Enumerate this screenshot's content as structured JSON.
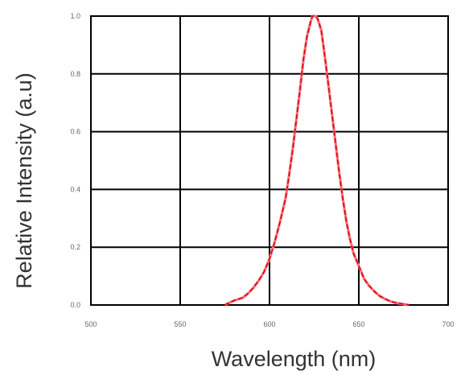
{
  "chart_data": {
    "type": "line",
    "title": "",
    "xlabel": "Wavelength (nm)",
    "ylabel": "Relative Intensity (a.u)",
    "xlim": [
      500,
      700
    ],
    "ylim": [
      0.0,
      1.0
    ],
    "xticks": [
      500,
      550,
      600,
      650,
      700
    ],
    "yticks": [
      0.0,
      0.2,
      0.4,
      0.6,
      0.8,
      1.0
    ],
    "xtick_labels": [
      "500",
      "550",
      "600",
      "650",
      "700"
    ],
    "ytick_labels": [
      "0.0",
      "0.2",
      "0.4",
      "0.6",
      "0.8",
      "1.0"
    ],
    "grid": true,
    "colors": {
      "line": "#e3000f",
      "line_light": "#f07a80",
      "grid": "#000000",
      "frame": "#000000"
    },
    "series": [
      {
        "x": [
          575,
          580,
          585,
          588,
          591,
          594,
          597,
          600,
          603,
          606,
          609,
          611,
          613,
          615,
          617,
          619,
          621,
          623,
          624,
          625,
          626,
          627,
          628,
          629,
          631,
          633,
          635,
          637,
          639,
          641,
          643,
          645,
          647,
          649,
          651,
          653,
          656,
          659,
          662,
          665,
          668,
          671,
          675,
          678
        ],
        "y": [
          0.0,
          0.015,
          0.025,
          0.04,
          0.06,
          0.085,
          0.115,
          0.16,
          0.22,
          0.29,
          0.37,
          0.45,
          0.54,
          0.64,
          0.74,
          0.85,
          0.93,
          0.98,
          1.0,
          1.0,
          1.0,
          0.99,
          0.97,
          0.95,
          0.86,
          0.76,
          0.66,
          0.56,
          0.46,
          0.37,
          0.29,
          0.23,
          0.18,
          0.15,
          0.12,
          0.09,
          0.065,
          0.045,
          0.03,
          0.02,
          0.012,
          0.007,
          0.003,
          0.0
        ]
      }
    ]
  }
}
